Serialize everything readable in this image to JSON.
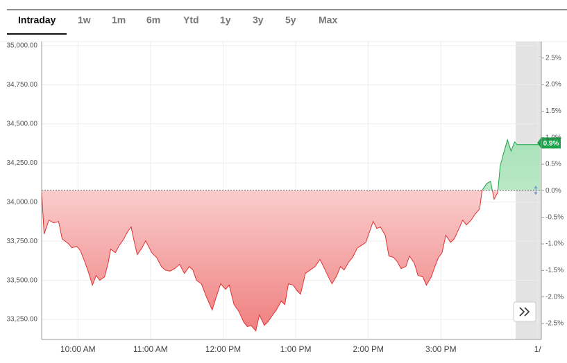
{
  "tabs": [
    "Intraday",
    "1w",
    "1m",
    "6m",
    "Ytd",
    "1y",
    "3y",
    "5y",
    "Max"
  ],
  "chart_data": {
    "type": "area",
    "x": [
      570,
      572,
      576,
      580,
      584,
      587,
      592,
      595,
      599,
      602,
      606,
      609,
      612,
      615,
      618,
      622,
      625,
      627,
      631,
      634,
      638,
      641,
      644,
      646,
      649,
      653,
      656,
      661,
      665,
      669,
      672,
      676,
      680,
      684,
      688,
      692,
      695,
      698,
      702,
      706,
      709,
      711,
      715,
      718,
      722,
      725,
      729,
      733,
      737,
      740,
      743,
      747,
      750,
      754,
      757,
      761,
      764,
      768,
      771,
      774,
      778,
      781,
      784,
      788,
      792,
      796,
      800,
      803,
      807,
      810,
      814,
      817,
      820,
      824,
      827,
      831,
      834,
      838,
      841,
      844,
      847,
      850,
      854,
      857,
      861,
      864,
      867,
      871,
      874,
      878,
      881,
      885,
      888,
      892,
      895,
      898,
      901,
      904,
      908,
      911,
      915,
      918,
      921,
      925,
      928,
      932,
      934,
      938,
      941,
      944,
      947,
      949,
      952,
      955,
      958,
      961,
      963,
      982
    ],
    "values": [
      34071,
      33796,
      33885,
      33867,
      33876,
      33765,
      33735,
      33708,
      33717,
      33690,
      33611,
      33544,
      33469,
      33531,
      33500,
      33522,
      33611,
      33699,
      33677,
      33721,
      33765,
      33810,
      33841,
      33765,
      33664,
      33708,
      33752,
      33677,
      33646,
      33588,
      33566,
      33558,
      33575,
      33602,
      33544,
      33588,
      33566,
      33500,
      33478,
      33398,
      33345,
      33310,
      33411,
      33478,
      33442,
      33469,
      33345,
      33301,
      33234,
      33204,
      33212,
      33177,
      33279,
      33212,
      33234,
      33279,
      33310,
      33367,
      33345,
      33478,
      33469,
      33434,
      33411,
      33544,
      33566,
      33588,
      33633,
      33588,
      33522,
      33478,
      33531,
      33588,
      33566,
      33619,
      33646,
      33708,
      33721,
      33743,
      33810,
      33876,
      33832,
      33841,
      33788,
      33655,
      33646,
      33619,
      33575,
      33588,
      33655,
      33611,
      33531,
      33522,
      33469,
      33522,
      33588,
      33646,
      33677,
      33788,
      33743,
      33765,
      33832,
      33885,
      33854,
      33885,
      33920,
      33956,
      34075,
      34119,
      34133,
      34018,
      34062,
      34230,
      34319,
      34398,
      34327,
      34385,
      34367,
      34367
    ],
    "baseline": 34075,
    "up_color": "#1aa34a",
    "down_color": "#e03131",
    "xlim": [
      570,
      983
    ],
    "xticks": [
      {
        "value": 600,
        "label": "10:00 AM"
      },
      {
        "value": 660,
        "label": "11:00 AM"
      },
      {
        "value": 720,
        "label": "12:00 PM"
      },
      {
        "value": 780,
        "label": "1:00 PM"
      },
      {
        "value": 840,
        "label": "2:00 PM"
      },
      {
        "value": 900,
        "label": "3:00 PM"
      },
      {
        "value": 980,
        "label": "1/"
      }
    ],
    "ylim": [
      33122,
      35026
    ],
    "yticks": [
      {
        "value": 35000,
        "label": "35,000.00"
      },
      {
        "value": 34750,
        "label": "34,750.00"
      },
      {
        "value": 34500,
        "label": "34,500.00"
      },
      {
        "value": 34250,
        "label": "34,250.00"
      },
      {
        "value": 34000,
        "label": "34,000.00"
      },
      {
        "value": 33750,
        "label": "33,750.00"
      },
      {
        "value": 33500,
        "label": "33,500.00"
      },
      {
        "value": 33250,
        "label": "33,250.00"
      }
    ],
    "y2lim": [
      -2.8,
      2.81
    ],
    "y2ticks": [
      {
        "value": 2.5,
        "label": "2.5%"
      },
      {
        "value": 2,
        "label": "2.0%"
      },
      {
        "value": 1.5,
        "label": "1.5%"
      },
      {
        "value": 1,
        "label": "1.0%"
      },
      {
        "value": 0.5,
        "label": "0.5%"
      },
      {
        "value": 0,
        "label": "0.0%"
      },
      {
        "value": -0.5,
        "label": "-0.5%"
      },
      {
        "value": -1,
        "label": "-1.0%"
      },
      {
        "value": -1.5,
        "label": "-1.5%"
      },
      {
        "value": -2,
        "label": "-2.0%"
      },
      {
        "value": -2.5,
        "label": "-2.5%"
      }
    ],
    "end_label": {
      "value": 0.9,
      "label": "0.9%"
    },
    "grid": true
  }
}
